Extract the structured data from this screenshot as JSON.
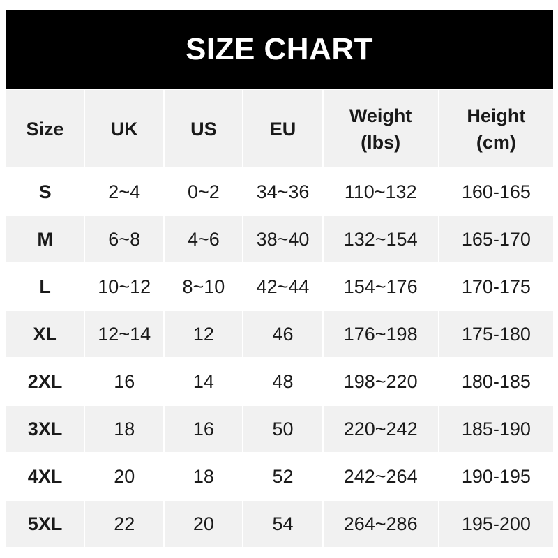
{
  "title": "SIZE CHART",
  "headers": [
    {
      "line1": "Size",
      "line2": ""
    },
    {
      "line1": "UK",
      "line2": ""
    },
    {
      "line1": "US",
      "line2": ""
    },
    {
      "line1": "EU",
      "line2": ""
    },
    {
      "line1": "Weight",
      "line2": "(lbs)"
    },
    {
      "line1": "Height",
      "line2": "(cm)"
    }
  ],
  "rows": [
    [
      "S",
      "2~4",
      "0~2",
      "34~36",
      "110~132",
      "160-165"
    ],
    [
      "M",
      "6~8",
      "4~6",
      "38~40",
      "132~154",
      "165-170"
    ],
    [
      "L",
      "10~12",
      "8~10",
      "42~44",
      "154~176",
      "170-175"
    ],
    [
      "XL",
      "12~14",
      "12",
      "46",
      "176~198",
      "175-180"
    ],
    [
      "2XL",
      "16",
      "14",
      "48",
      "198~220",
      "180-185"
    ],
    [
      "3XL",
      "18",
      "16",
      "50",
      "220~242",
      "185-190"
    ],
    [
      "4XL",
      "20",
      "18",
      "52",
      "242~264",
      "190-195"
    ],
    [
      "5XL",
      "22",
      "20",
      "54",
      "264~286",
      "195-200"
    ]
  ],
  "colors": {
    "banner": "#000000",
    "banner_text": "#ffffff",
    "shaded_row": "#f1f1f1",
    "text": "#1a1a1a"
  }
}
